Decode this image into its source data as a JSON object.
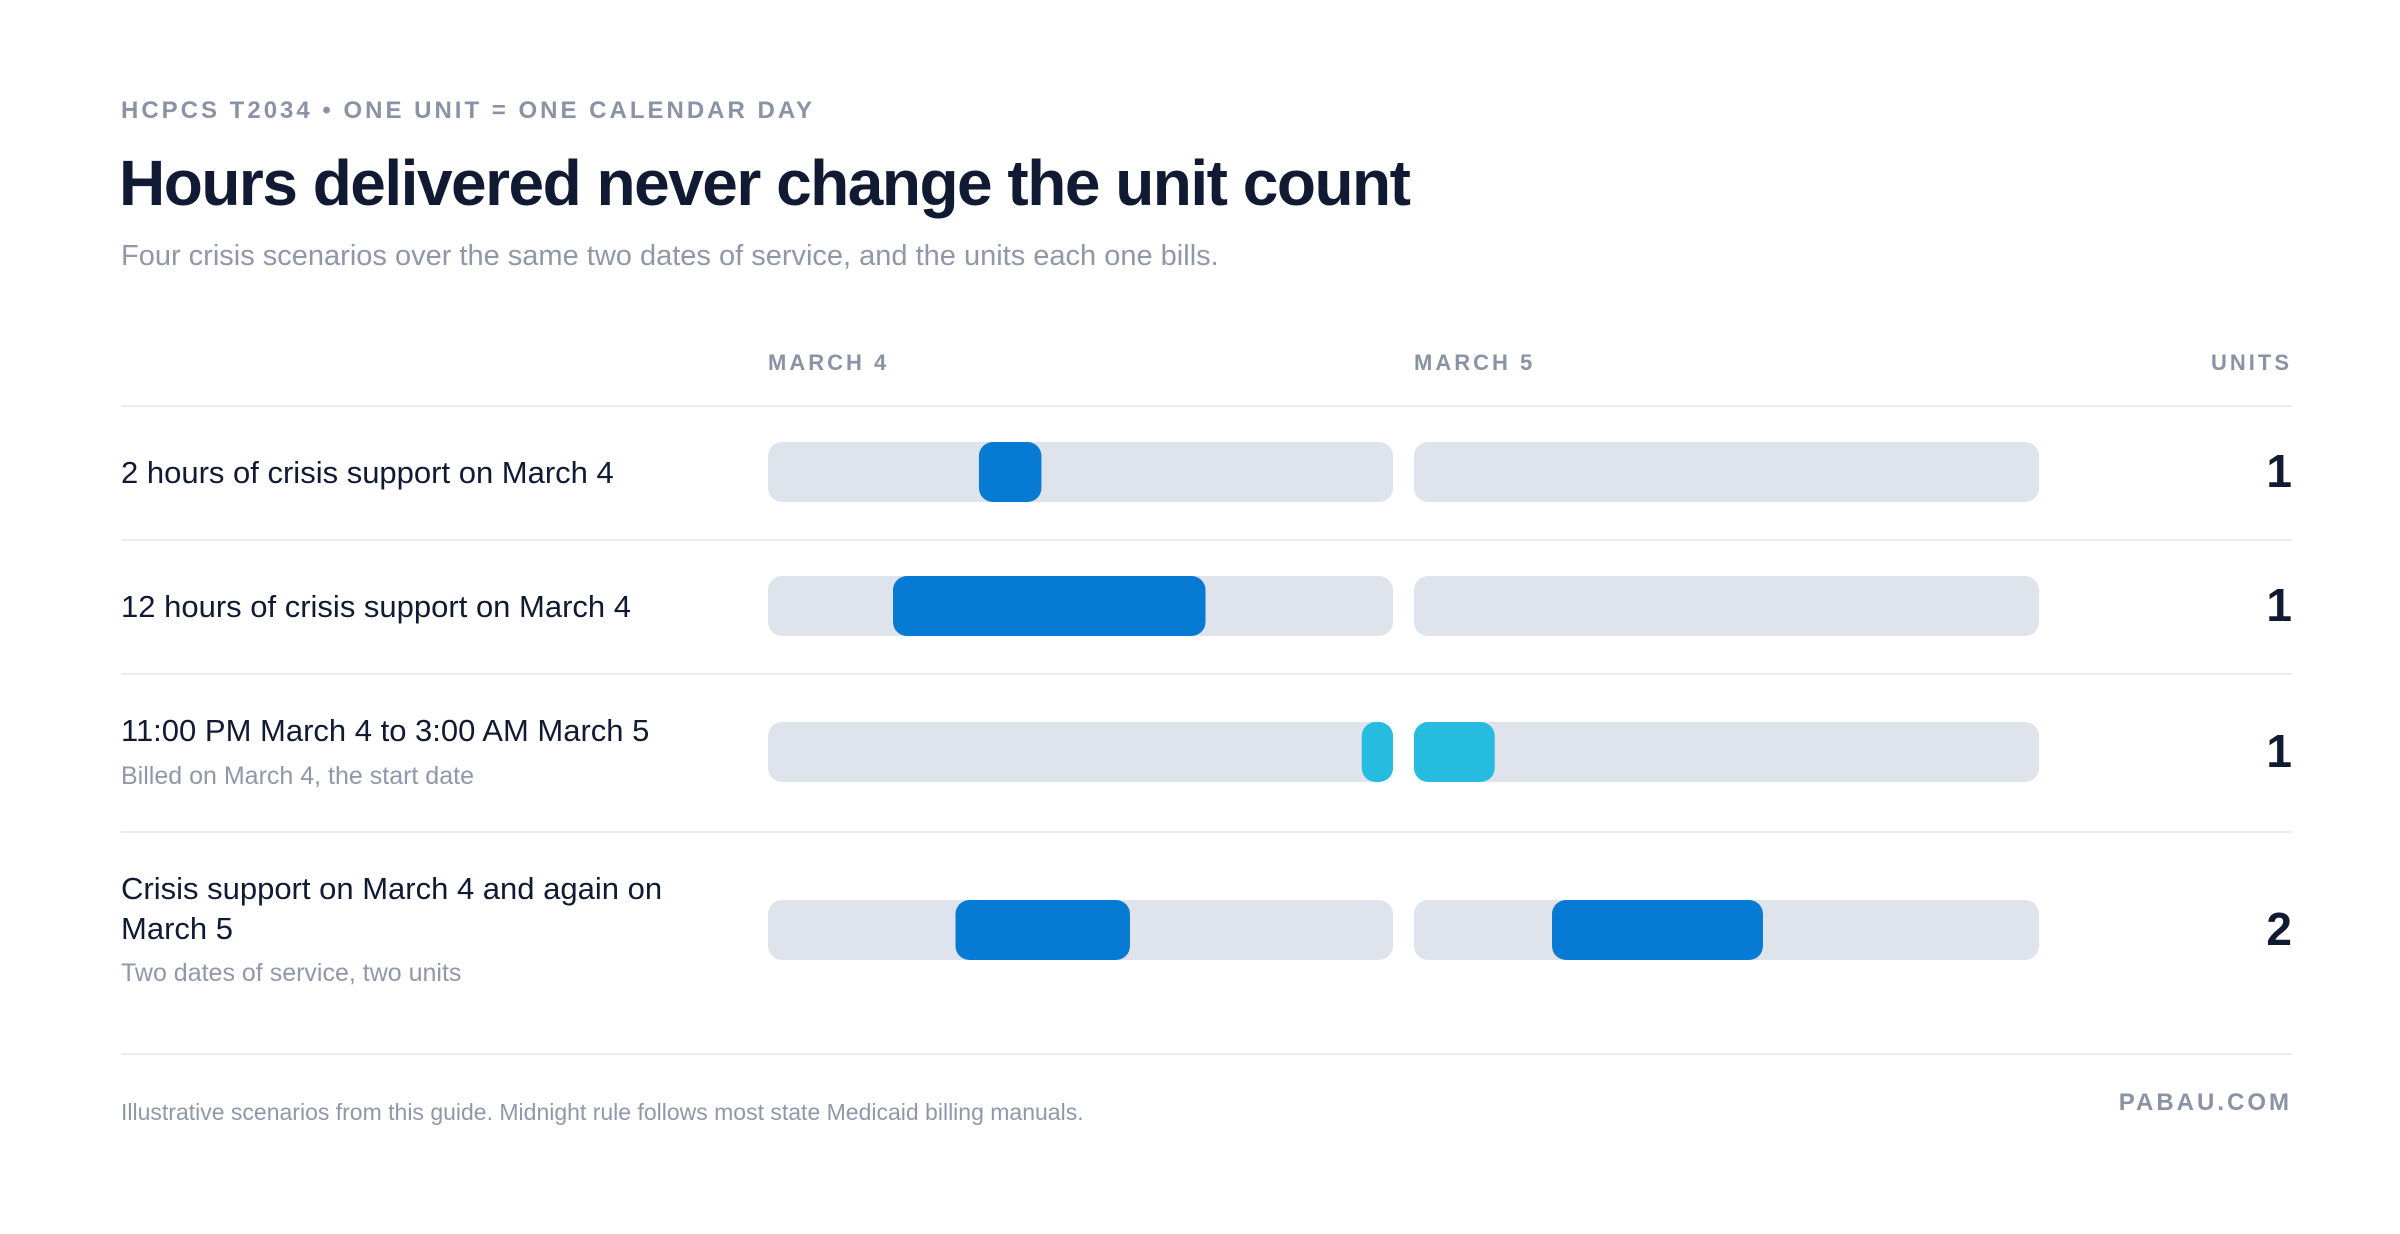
{
  "header": {
    "eyebrow": "HCPCS T2034 • ONE UNIT = ONE CALENDAR DAY",
    "title": "Hours delivered never change the unit count",
    "subtitle": "Four crisis scenarios over the same two dates of service, and the units each one bills."
  },
  "columns": {
    "day1": "MARCH 4",
    "day2": "MARCH 5",
    "units": "UNITS"
  },
  "colors": {
    "primary": "#077BD3",
    "overnight": "#25BCE0",
    "track": "#DFE3EC",
    "text": "#111A33",
    "muted": "#8A93A6"
  },
  "chart_data": {
    "type": "timeline",
    "x_unit": "hour of day",
    "days": [
      "MARCH 4",
      "MARCH 5"
    ],
    "xlim": [
      0,
      24
    ],
    "rows": [
      {
        "label": "2 hours of crisis support on March 4",
        "note": "",
        "units": "1",
        "segments": [
          {
            "day": 0,
            "start": 8.1,
            "end": 10.5,
            "kind": "primary"
          }
        ]
      },
      {
        "label": "12 hours of crisis support on March 4",
        "note": "",
        "units": "1",
        "segments": [
          {
            "day": 0,
            "start": 4.8,
            "end": 16.8,
            "kind": "primary"
          }
        ]
      },
      {
        "label": "11:00 PM March 4 to 3:00 AM March 5",
        "note": "Billed on March 4, the start date",
        "units": "1",
        "segments": [
          {
            "day": 0,
            "start": 22.8,
            "end": 24,
            "kind": "overnight"
          },
          {
            "day": 1,
            "start": 0,
            "end": 3.1,
            "kind": "overnight"
          }
        ]
      },
      {
        "label": "Crisis support on March 4 and again on March 5",
        "note": "Two dates of service, two units",
        "units": "2",
        "segments": [
          {
            "day": 0,
            "start": 7.2,
            "end": 13.9,
            "kind": "primary"
          },
          {
            "day": 1,
            "start": 5.3,
            "end": 13.4,
            "kind": "primary"
          }
        ]
      }
    ]
  },
  "footer": {
    "note": "Illustrative scenarios from this guide. Midnight rule follows most state Medicaid billing manuals.",
    "brand": "PABAU.COM"
  }
}
